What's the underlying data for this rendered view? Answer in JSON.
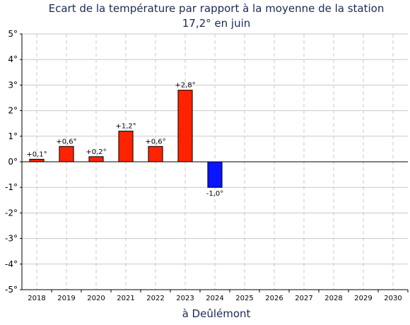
{
  "chart_data": {
    "type": "bar",
    "title": "Ecart de la température par rapport à la moyenne de la station",
    "subtitle": "17,2° en juin",
    "xlabel": "à Deûlémont",
    "ylabel": "",
    "ylim": [
      -5,
      5
    ],
    "yticks": [
      5,
      4,
      3,
      2,
      1,
      0,
      -1,
      -2,
      -3,
      -4,
      -5
    ],
    "ytick_labels": [
      "5°",
      "4°",
      "3°",
      "2°",
      "1°",
      "0°",
      "-1°",
      "-2°",
      "-3°",
      "-4°",
      "-5°"
    ],
    "categories": [
      "2018",
      "2019",
      "2020",
      "2021",
      "2022",
      "2023",
      "2024",
      "2025",
      "2026",
      "2027",
      "2028",
      "2029",
      "2030"
    ],
    "values": [
      0.1,
      0.6,
      0.2,
      1.2,
      0.6,
      2.8,
      -1.0,
      null,
      null,
      null,
      null,
      null,
      null
    ],
    "data_labels": [
      "+0,1°",
      "+0,6°",
      "+0,2°",
      "+1,2°",
      "+0,6°",
      "+2,8°",
      "-1,0°",
      "",
      "",
      "",
      "",
      "",
      ""
    ],
    "positive_color": "#ff2200",
    "negative_color": "#0a14ff",
    "grid": true
  }
}
